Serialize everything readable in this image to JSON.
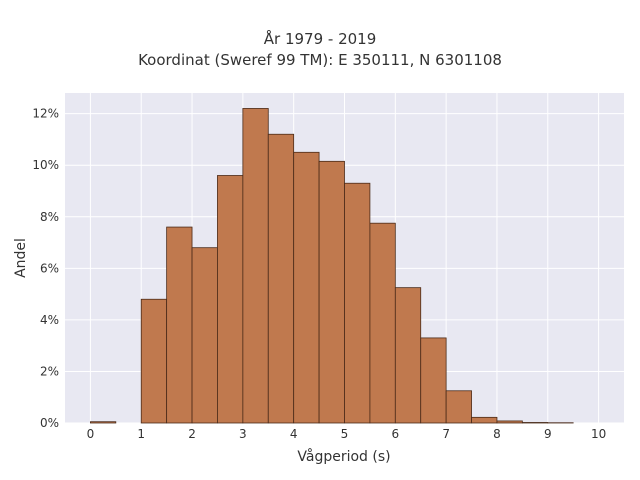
{
  "chart_data": {
    "type": "bar",
    "title": "År 1979 - 2019",
    "subtitle": "Koordinat (Sweref 99 TM): E 350111, N 6301108",
    "xlabel": "Vågperiod (s)",
    "ylabel": "Andel",
    "xlim": [
      -0.5,
      10.5
    ],
    "ylim": [
      0,
      12.8
    ],
    "x_ticks": [
      0,
      1,
      2,
      3,
      4,
      5,
      6,
      7,
      8,
      9,
      10
    ],
    "y_ticks": [
      0,
      2,
      4,
      6,
      8,
      10,
      12
    ],
    "y_tick_suffix": "%",
    "bin_width": 0.5,
    "bins": [
      {
        "x0": 0.0,
        "x1": 0.5,
        "value": 0.05
      },
      {
        "x0": 1.0,
        "x1": 1.5,
        "value": 4.8
      },
      {
        "x0": 1.5,
        "x1": 2.0,
        "value": 7.6
      },
      {
        "x0": 2.0,
        "x1": 2.5,
        "value": 6.8
      },
      {
        "x0": 2.5,
        "x1": 3.0,
        "value": 9.6
      },
      {
        "x0": 3.0,
        "x1": 3.5,
        "value": 12.2
      },
      {
        "x0": 3.5,
        "x1": 4.0,
        "value": 11.2
      },
      {
        "x0": 4.0,
        "x1": 4.5,
        "value": 10.5
      },
      {
        "x0": 4.5,
        "x1": 5.0,
        "value": 10.15
      },
      {
        "x0": 5.0,
        "x1": 5.5,
        "value": 9.3
      },
      {
        "x0": 5.5,
        "x1": 6.0,
        "value": 7.75
      },
      {
        "x0": 6.0,
        "x1": 6.5,
        "value": 5.25
      },
      {
        "x0": 6.5,
        "x1": 7.0,
        "value": 3.3
      },
      {
        "x0": 7.0,
        "x1": 7.5,
        "value": 1.25
      },
      {
        "x0": 7.5,
        "x1": 8.0,
        "value": 0.22
      },
      {
        "x0": 8.0,
        "x1": 8.5,
        "value": 0.08
      },
      {
        "x0": 8.5,
        "x1": 9.0,
        "value": 0.02
      },
      {
        "x0": 9.0,
        "x1": 9.5,
        "value": 0.01
      }
    ],
    "grid": true,
    "colors": {
      "bar_fill": "#c0794e",
      "bar_edge": "#4a2a18",
      "plot_background": "#e8e8f2",
      "grid": "#ffffff"
    }
  }
}
